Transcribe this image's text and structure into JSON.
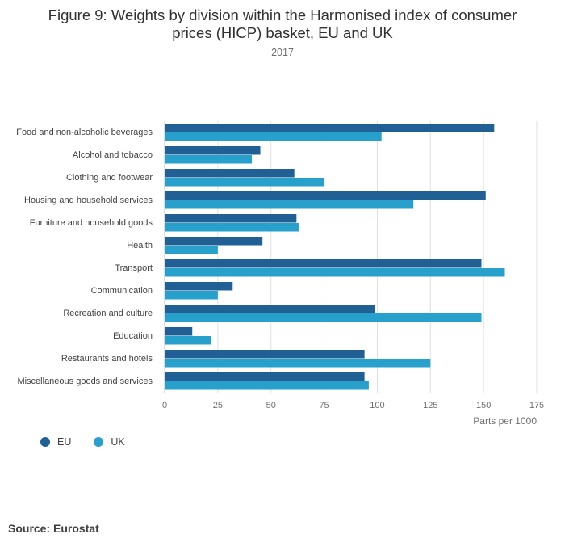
{
  "title_lines": [
    "Figure 9: Weights by division within the Harmonised index of consumer",
    "prices (HICP) basket, EU and UK"
  ],
  "subtitle": "2017",
  "source": "Source: Eurostat",
  "colors": {
    "eu": "#206095",
    "uk": "#27a0cc",
    "grid": "#e0e0e0",
    "axis": "#707070",
    "label": "#414042"
  },
  "chart_data": {
    "type": "bar",
    "orientation": "horizontal",
    "title": "Figure 9: Weights by division within the Harmonised index of consumer prices (HICP) basket, EU and UK",
    "subtitle": "2017",
    "xlabel": "Parts per 1000",
    "ylabel": "",
    "xlim": [
      0,
      175
    ],
    "xticks": [
      "0",
      "25",
      "50",
      "75",
      "100",
      "125",
      "150",
      "175"
    ],
    "grid": true,
    "legend_position": "bottom-left",
    "categories": [
      "Food and non-alcoholic beverages",
      "Alcohol and tobacco",
      "Clothing and footwear",
      "Housing and household services",
      "Furniture and household goods",
      "Health",
      "Transport",
      "Communication",
      "Recreation and culture",
      "Education",
      "Restaurants and hotels",
      "Miscellaneous goods and services"
    ],
    "series": [
      {
        "name": "EU",
        "color": "#206095",
        "values": [
          155,
          45,
          61,
          151,
          62,
          46,
          149,
          32,
          99,
          13,
          94,
          94
        ]
      },
      {
        "name": "UK",
        "color": "#27a0cc",
        "values": [
          102,
          41,
          75,
          117,
          63,
          25,
          160,
          25,
          149,
          22,
          125,
          96
        ]
      }
    ]
  }
}
